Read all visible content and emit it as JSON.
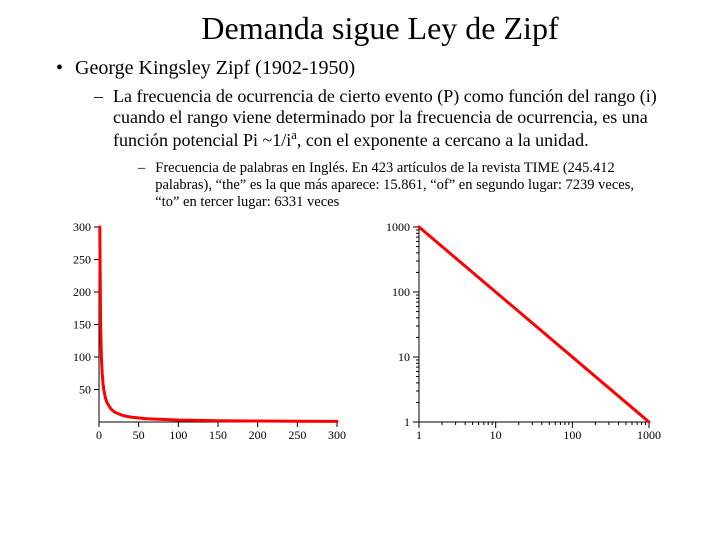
{
  "title": "Demanda sigue Ley de Zipf",
  "bullet1": "George Kingsley Zipf (1902-1950)",
  "bullet2_pre": "La frecuencia de ocurrencia de cierto evento (P) como función del rango (i) cuando el rango viene determinado por la frecuencia de ocurrencia, es una función potencial Pi ~1/i",
  "bullet2_sup": "a",
  "bullet2_post": ", con el exponente a cercano a la unidad.",
  "bullet3": "Frecuencia de palabras en Inglés. En 423 artículos de la revista TIME (245.412 palabras), “the” es la que más aparece: 15.861, “of” en segundo lugar: 7239 veces, “to” en tercer lugar: 6331 veces",
  "chart_linear": {
    "type": "line",
    "xlim": [
      0,
      300
    ],
    "ylim": [
      0,
      300
    ],
    "xticks": [
      0,
      50,
      100,
      150,
      200,
      250,
      300
    ],
    "yticks": [
      50,
      100,
      150,
      200,
      250,
      300
    ],
    "xtick_labels": [
      "0",
      "50",
      "100",
      "150",
      "200",
      "250",
      "300"
    ],
    "ytick_labels": [
      "50",
      "100",
      "150",
      "200",
      "250",
      "300"
    ],
    "points": [
      [
        1,
        300
      ],
      [
        2,
        150
      ],
      [
        3,
        100
      ],
      [
        4,
        75
      ],
      [
        5,
        60
      ],
      [
        6,
        50
      ],
      [
        8,
        37.5
      ],
      [
        10,
        30
      ],
      [
        15,
        20
      ],
      [
        20,
        15
      ],
      [
        30,
        10
      ],
      [
        40,
        7.5
      ],
      [
        60,
        5
      ],
      [
        100,
        3
      ],
      [
        150,
        2
      ],
      [
        200,
        1.5
      ],
      [
        250,
        1.2
      ],
      [
        300,
        1
      ]
    ],
    "line_color": "#ff0000",
    "line_width": 3,
    "background_color": "#ffffff",
    "axis_color": "#000000",
    "tick_fontsize": 12
  },
  "chart_log": {
    "type": "line_loglog",
    "xlim": [
      1,
      1000
    ],
    "ylim": [
      1,
      1000
    ],
    "xticks": [
      1,
      10,
      100,
      1000
    ],
    "yticks": [
      1,
      10,
      100,
      1000
    ],
    "xtick_labels": [
      "1",
      "10",
      "100",
      "1000"
    ],
    "ytick_labels": [
      "1",
      "10",
      "100",
      "1000"
    ],
    "points": [
      [
        1,
        1000
      ],
      [
        1000,
        1
      ]
    ],
    "minor_ticks": true,
    "line_color": "#ff0000",
    "line_width": 3,
    "background_color": "#ffffff",
    "axis_color": "#000000",
    "tick_fontsize": 12
  }
}
